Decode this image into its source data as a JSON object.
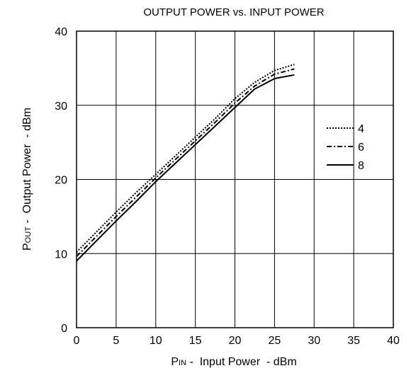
{
  "chart_data": {
    "type": "line",
    "title": "OUTPUT POWER vs. INPUT POWER",
    "xlabel": {
      "main": "P",
      "sub": "IN",
      "rest": " -  Input Power  - dBm"
    },
    "ylabel": {
      "main": "P",
      "sub": "OUT",
      "rest": " -  Output Power  - dBm"
    },
    "xlim": [
      0,
      40
    ],
    "ylim": [
      0,
      40
    ],
    "xticks": [
      0,
      5,
      10,
      15,
      20,
      25,
      30,
      35,
      40
    ],
    "yticks": [
      0,
      10,
      20,
      30,
      40
    ],
    "grid": true,
    "legend_position": "right",
    "series": [
      {
        "name": "4",
        "style": "dotted",
        "x": [
          0,
          2.5,
          5,
          7.5,
          10,
          12.5,
          15,
          17.5,
          20,
          22.5,
          25,
          27.5
        ],
        "y": [
          10.2,
          12.9,
          15.6,
          18.2,
          20.7,
          23.2,
          25.7,
          28.2,
          30.9,
          33.1,
          34.7,
          35.5
        ]
      },
      {
        "name": "6",
        "style": "dashdot",
        "x": [
          0,
          2.5,
          5,
          7.5,
          10,
          12.5,
          15,
          17.5,
          20,
          22.5,
          25,
          27.5
        ],
        "y": [
          9.6,
          12.3,
          15.0,
          17.6,
          20.2,
          22.7,
          25.2,
          27.7,
          30.3,
          32.6,
          34.2,
          34.9
        ]
      },
      {
        "name": "8",
        "style": "solid",
        "x": [
          0,
          2.5,
          5,
          7.5,
          10,
          12.5,
          15,
          17.5,
          20,
          22.5,
          25,
          27.5
        ],
        "y": [
          9.0,
          11.7,
          14.4,
          17.0,
          19.7,
          22.2,
          24.7,
          27.2,
          29.7,
          32.2,
          33.6,
          34.1
        ]
      }
    ]
  }
}
